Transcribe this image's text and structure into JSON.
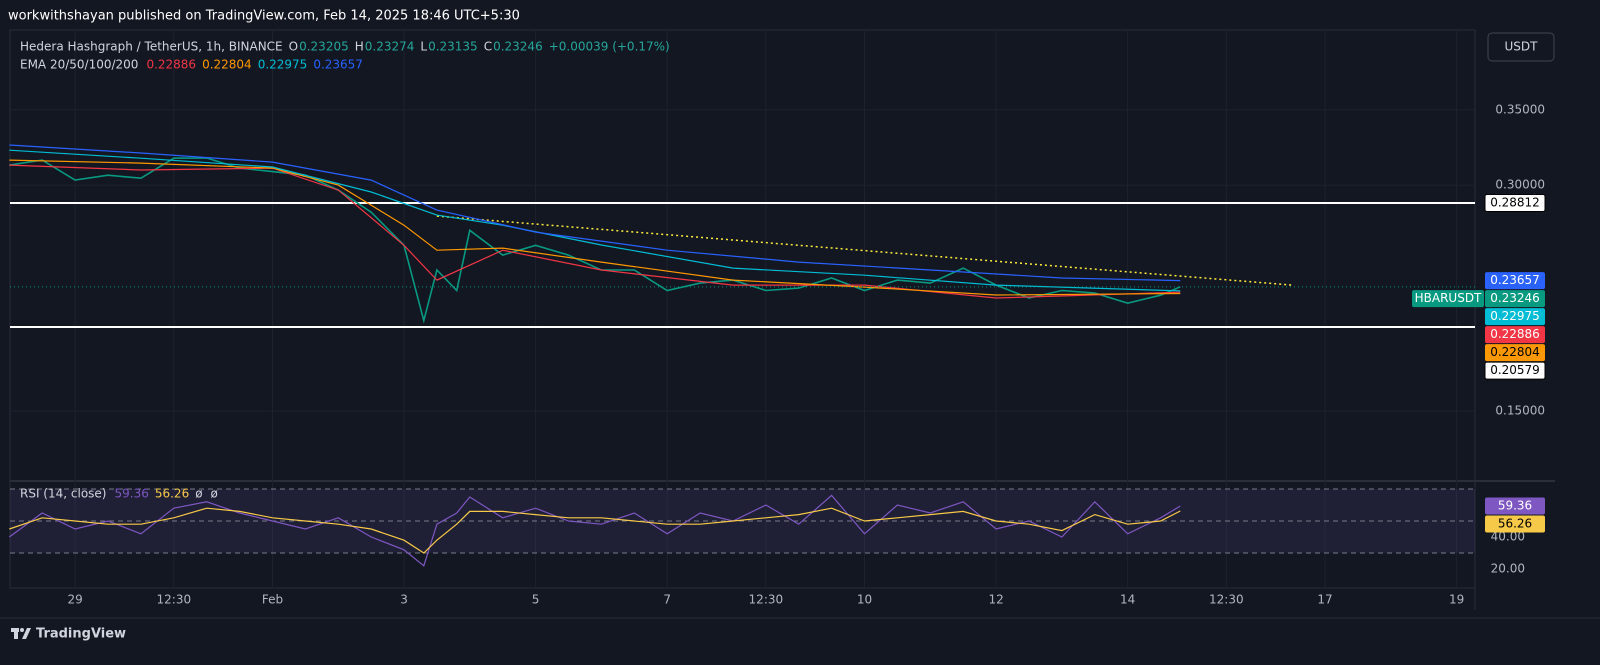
{
  "header": {
    "publisher": "workwithshayan published on TradingView.com, Feb 14, 2025 18:46 UTC+5:30",
    "currency": "USDT",
    "brand": "TradingView"
  },
  "chart_data": [
    {
      "type": "line",
      "title": "Hedera Hashgraph / TetherUS, 1h, BINANCE",
      "ohlc": [
        {
          "key": "O",
          "value": "0.23205"
        },
        {
          "key": "H",
          "value": "0.23274"
        },
        {
          "key": "L",
          "value": "0.23135"
        },
        {
          "key": "C",
          "value": "0.23246"
        }
      ],
      "change": "+0.00039 (+0.17%)",
      "indicator": "EMA 20/50/100/200",
      "symbol": "HBARUSDT",
      "xlim": [
        -0.99,
        21.28
      ],
      "xticks": [
        {
          "value": 0,
          "label": "29"
        },
        {
          "value": 1.5,
          "label": "12:30"
        },
        {
          "value": 3,
          "label": "Feb"
        },
        {
          "value": 5,
          "label": "3"
        },
        {
          "value": 7,
          "label": "5"
        },
        {
          "value": 9,
          "label": "7"
        },
        {
          "value": 10.5,
          "label": "12:30"
        },
        {
          "value": 12,
          "label": "10"
        },
        {
          "value": 14,
          "label": "12"
        },
        {
          "value": 16,
          "label": "14"
        },
        {
          "value": 17.5,
          "label": "12:30"
        },
        {
          "value": 19,
          "label": "17"
        },
        {
          "value": 21,
          "label": "19"
        }
      ],
      "ylim": [
        0.1055,
        0.403
      ],
      "yticks": [
        {
          "value": 0.35,
          "label": "0.35000"
        },
        {
          "value": 0.3,
          "label": "0.30000"
        },
        {
          "value": 0.15,
          "label": "0.15000"
        }
      ],
      "grid": true,
      "series": [
        {
          "color": "#089981",
          "label": "0.23246",
          "x": [
            -1,
            -0.5,
            0,
            0.5,
            1,
            1.5,
            2,
            2.5,
            3,
            3.5,
            4,
            4.5,
            5,
            5.3,
            5.5,
            5.8,
            6,
            6.5,
            7,
            7.5,
            8,
            8.5,
            9,
            9.5,
            10,
            10.5,
            11,
            11.5,
            12,
            12.5,
            13,
            13.5,
            14,
            14.5,
            15,
            15.5,
            16,
            16.5,
            16.8
          ],
          "values": [
            0.3133,
            0.3166,
            0.3033,
            0.3066,
            0.3046,
            0.3179,
            0.318,
            0.3113,
            0.309,
            0.3066,
            0.2967,
            0.282,
            0.26,
            0.21,
            0.2436,
            0.23,
            0.27,
            0.2535,
            0.26,
            0.2535,
            0.2436,
            0.2436,
            0.23,
            0.2349,
            0.2369,
            0.23,
            0.2316,
            0.2383,
            0.23,
            0.2369,
            0.2349,
            0.2449,
            0.2336,
            0.225,
            0.23,
            0.2283,
            0.2216,
            0.2269,
            0.23246
          ]
        },
        {
          "color": "#f23645",
          "label": "0.22886",
          "x": [
            -1,
            1,
            3,
            4,
            5,
            5.5,
            6.5,
            8,
            10,
            12,
            14,
            16.8
          ],
          "values": [
            0.3133,
            0.31,
            0.3113,
            0.2967,
            0.26,
            0.2369,
            0.2568,
            0.2436,
            0.2336,
            0.2336,
            0.225,
            0.22886
          ]
        },
        {
          "color": "#ff9800",
          "label": "0.22804",
          "x": [
            -1,
            1,
            3,
            4,
            5,
            5.5,
            6.5,
            8,
            10,
            12,
            14,
            16.8
          ],
          "values": [
            0.3166,
            0.3146,
            0.3113,
            0.3,
            0.2734,
            0.2568,
            0.2582,
            0.2489,
            0.2369,
            0.2323,
            0.227,
            0.22804
          ]
        },
        {
          "color": "#00bcd4",
          "label": "0.22975",
          "x": [
            -1,
            1,
            3,
            4.5,
            5.5,
            6.5,
            8,
            10,
            12,
            14,
            16.8
          ],
          "values": [
            0.3232,
            0.3179,
            0.312,
            0.2954,
            0.2801,
            0.2734,
            0.2602,
            0.2449,
            0.2402,
            0.2336,
            0.22975
          ]
        },
        {
          "color": "#2962ff",
          "label": "0.23657",
          "x": [
            -1,
            1,
            3,
            4.5,
            5.5,
            7,
            9,
            11,
            13,
            15,
            16.8
          ],
          "values": [
            0.3266,
            0.3213,
            0.3153,
            0.3033,
            0.2834,
            0.2688,
            0.2568,
            0.2489,
            0.2436,
            0.2383,
            0.23657
          ]
        }
      ],
      "hlines": [
        {
          "value": 0.28812,
          "label": "0.28812",
          "color": "#ffffff"
        },
        {
          "value": 0.20579,
          "label": "0.20579",
          "color": "#ffffff"
        }
      ],
      "trendline": {
        "x": [
          5.5,
          18.5
        ],
        "values": [
          0.2794,
          0.2336
        ],
        "color": "#ffeb3b"
      }
    },
    {
      "type": "line",
      "title": "RSI (14, close)",
      "extra": [
        "ø",
        "ø"
      ],
      "ylim": [
        8.1,
        71.9
      ],
      "yticks": [
        {
          "value": 40,
          "label": "40.00"
        },
        {
          "value": 20,
          "label": "20.00"
        }
      ],
      "levels": [
        70,
        50,
        30
      ],
      "series": [
        {
          "color": "#7e57c2",
          "label": "59.36",
          "x": [
            -1,
            -0.5,
            0,
            0.5,
            1,
            1.5,
            2,
            2.5,
            3,
            3.5,
            4,
            4.5,
            5,
            5.3,
            5.5,
            5.8,
            6,
            6.5,
            7,
            7.5,
            8,
            8.5,
            9,
            9.5,
            10,
            10.5,
            11,
            11.5,
            12,
            12.5,
            13,
            13.5,
            14,
            14.5,
            15,
            15.5,
            16,
            16.5,
            16.8
          ],
          "values": [
            40,
            55,
            45,
            50,
            42,
            58,
            62,
            55,
            50,
            45,
            52,
            40,
            32,
            22,
            48,
            55,
            65,
            52,
            58,
            50,
            48,
            55,
            42,
            55,
            50,
            60,
            48,
            66,
            42,
            60,
            55,
            62,
            45,
            50,
            40,
            62,
            42,
            52,
            59.36
          ]
        },
        {
          "color": "#f7c948",
          "label": "56.26",
          "x": [
            -1,
            -0.5,
            0,
            0.5,
            1,
            1.5,
            2,
            2.5,
            3,
            3.5,
            4,
            4.5,
            5,
            5.3,
            5.5,
            5.8,
            6,
            6.5,
            7,
            7.5,
            8,
            8.5,
            9,
            9.5,
            10,
            10.5,
            11,
            11.5,
            12,
            12.5,
            13,
            13.5,
            14,
            14.5,
            15,
            15.5,
            16,
            16.5,
            16.8
          ],
          "values": [
            45,
            52,
            50,
            48,
            48,
            52,
            58,
            56,
            52,
            50,
            48,
            45,
            38,
            30,
            38,
            48,
            56,
            56,
            54,
            52,
            52,
            50,
            48,
            48,
            50,
            52,
            54,
            58,
            50,
            52,
            54,
            56,
            50,
            48,
            44,
            54,
            48,
            50,
            56.26
          ]
        }
      ]
    }
  ]
}
